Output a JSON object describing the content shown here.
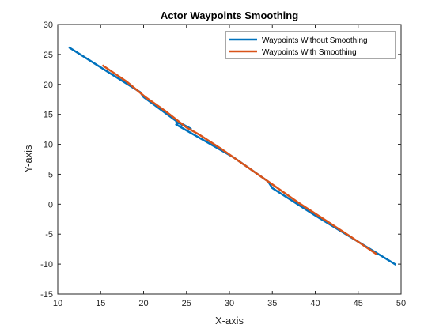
{
  "chart_data": {
    "type": "line",
    "title": "Actor Waypoints Smoothing",
    "xlabel": "X-axis",
    "ylabel": "Y-axis",
    "xlim": [
      10,
      50
    ],
    "ylim": [
      -15,
      30
    ],
    "xticks": [
      10,
      15,
      20,
      25,
      30,
      35,
      40,
      45,
      50
    ],
    "yticks": [
      -15,
      -10,
      -5,
      0,
      5,
      10,
      15,
      20,
      25,
      30
    ],
    "grid": false,
    "legend_position": "top-right",
    "series": [
      {
        "name": "Waypoints Without Smoothing",
        "color": "#0072BD",
        "points": [
          [
            11.3,
            26.2
          ],
          [
            16.5,
            21.5
          ],
          [
            19.6,
            18.7
          ],
          [
            20.0,
            17.9
          ],
          [
            23.6,
            14.1
          ],
          [
            25.5,
            12.6
          ],
          [
            24.4,
            13.3
          ],
          [
            23.8,
            13.8
          ],
          [
            24.1,
            13.6
          ],
          [
            23.8,
            13.3
          ],
          [
            30.5,
            7.8
          ],
          [
            34.5,
            3.8
          ],
          [
            35.0,
            2.7
          ],
          [
            40.0,
            -1.9
          ],
          [
            49.4,
            -10.1
          ]
        ]
      },
      {
        "name": "Waypoints With Smoothing",
        "color": "#D95319",
        "points": [
          [
            15.2,
            23.2
          ],
          [
            18.0,
            20.5
          ],
          [
            20.2,
            17.9
          ],
          [
            22.5,
            15.6
          ],
          [
            25.0,
            12.8
          ],
          [
            26.5,
            11.6
          ],
          [
            29.0,
            9.3
          ],
          [
            32.0,
            6.3
          ],
          [
            35.0,
            3.3
          ],
          [
            38.0,
            0.3
          ],
          [
            41.0,
            -2.5
          ],
          [
            44.0,
            -5.3
          ],
          [
            47.2,
            -8.4
          ]
        ]
      }
    ]
  }
}
